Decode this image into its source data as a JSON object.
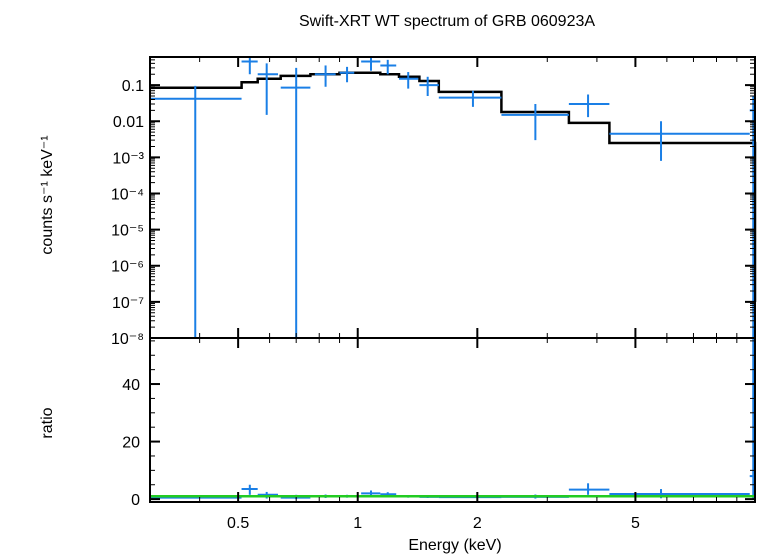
{
  "chart_data": [
    {
      "type": "scatter",
      "title": "Swift-XRT WT spectrum of GRB 060923A",
      "xlabel": "Energy (keV)",
      "ylabel": "counts s⁻¹ keV⁻¹",
      "xscale": "log",
      "yscale": "log",
      "xlim": [
        0.3,
        10
      ],
      "ylim": [
        1e-08,
        0.6
      ],
      "yticks": [
        {
          "v": 0.1,
          "label": "0.1"
        },
        {
          "v": 0.01,
          "label": "0.01"
        },
        {
          "v": 0.001,
          "label": "10⁻³"
        },
        {
          "v": 0.0001,
          "label": "10⁻⁴"
        },
        {
          "v": 1e-05,
          "label": "10⁻⁵"
        },
        {
          "v": 1e-06,
          "label": "10⁻⁶"
        },
        {
          "v": 1e-07,
          "label": "10⁻⁷"
        },
        {
          "v": 1e-08,
          "label": "10⁻⁸"
        }
      ],
      "data_color": "#1a7fe6",
      "model_color": "#000000",
      "data": [
        {
          "x": 0.39,
          "xlo": 0.3,
          "xhi": 0.51,
          "y": 0.042,
          "ylo": 1e-08,
          "yhi": 0.095
        },
        {
          "x": 0.535,
          "xlo": 0.51,
          "xhi": 0.56,
          "y": 0.45,
          "ylo": 0.2,
          "yhi": 0.65
        },
        {
          "x": 0.59,
          "xlo": 0.56,
          "xhi": 0.63,
          "y": 0.2,
          "ylo": 0.015,
          "yhi": 0.4
        },
        {
          "x": 0.7,
          "xlo": 0.64,
          "xhi": 0.76,
          "y": 0.085,
          "ylo": 1e-08,
          "yhi": 0.3
        },
        {
          "x": 0.83,
          "xlo": 0.78,
          "xhi": 0.88,
          "y": 0.2,
          "ylo": 0.09,
          "yhi": 0.35
        },
        {
          "x": 0.94,
          "xlo": 0.9,
          "xhi": 0.98,
          "y": 0.22,
          "ylo": 0.12,
          "yhi": 0.32
        },
        {
          "x": 1.08,
          "xlo": 1.02,
          "xhi": 1.14,
          "y": 0.45,
          "ylo": 0.25,
          "yhi": 0.65
        },
        {
          "x": 1.19,
          "xlo": 1.14,
          "xhi": 1.25,
          "y": 0.35,
          "ylo": 0.2,
          "yhi": 0.5
        },
        {
          "x": 1.34,
          "xlo": 1.27,
          "xhi": 1.42,
          "y": 0.15,
          "ylo": 0.08,
          "yhi": 0.23
        },
        {
          "x": 1.5,
          "xlo": 1.43,
          "xhi": 1.6,
          "y": 0.1,
          "ylo": 0.05,
          "yhi": 0.17
        },
        {
          "x": 1.95,
          "xlo": 1.6,
          "xhi": 2.3,
          "y": 0.045,
          "ylo": 0.025,
          "yhi": 0.07
        },
        {
          "x": 2.8,
          "xlo": 2.3,
          "xhi": 3.4,
          "y": 0.015,
          "ylo": 0.003,
          "yhi": 0.03
        },
        {
          "x": 3.8,
          "xlo": 3.4,
          "xhi": 4.3,
          "y": 0.03,
          "ylo": 0.013,
          "yhi": 0.055
        },
        {
          "x": 5.8,
          "xlo": 4.3,
          "xhi": 9.7,
          "y": 0.0045,
          "ylo": 0.0008,
          "yhi": 0.01
        },
        {
          "x": 9.9,
          "xlo": 9.7,
          "xhi": 10,
          "y": 0.02,
          "ylo": 1e-08,
          "yhi": 0.05
        }
      ],
      "model_steps": [
        {
          "xlo": 0.3,
          "xhi": 0.51,
          "y": 0.085
        },
        {
          "xlo": 0.51,
          "xhi": 0.56,
          "y": 0.12
        },
        {
          "xlo": 0.56,
          "xhi": 0.64,
          "y": 0.15
        },
        {
          "xlo": 0.64,
          "xhi": 0.76,
          "y": 0.18
        },
        {
          "xlo": 0.76,
          "xhi": 0.9,
          "y": 0.2
        },
        {
          "xlo": 0.9,
          "xhi": 1.14,
          "y": 0.22
        },
        {
          "xlo": 1.14,
          "xhi": 1.27,
          "y": 0.2
        },
        {
          "xlo": 1.27,
          "xhi": 1.43,
          "y": 0.17
        },
        {
          "xlo": 1.43,
          "xhi": 1.6,
          "y": 0.13
        },
        {
          "xlo": 1.6,
          "xhi": 2.3,
          "y": 0.065
        },
        {
          "xlo": 2.3,
          "xhi": 3.4,
          "y": 0.018
        },
        {
          "xlo": 3.4,
          "xhi": 4.3,
          "y": 0.009
        },
        {
          "xlo": 4.3,
          "xhi": 9.7,
          "y": 0.0025
        },
        {
          "xlo": 9.7,
          "xhi": 10,
          "y": 0.0025
        }
      ]
    },
    {
      "type": "scatter",
      "xlabel": "Energy (keV)",
      "ylabel": "ratio",
      "xscale": "log",
      "xlim": [
        0.3,
        10
      ],
      "ylim": [
        -1,
        56
      ],
      "yticks": [
        {
          "v": 0,
          "label": "0"
        },
        {
          "v": 20,
          "label": "20"
        },
        {
          "v": 40,
          "label": "40"
        }
      ],
      "xticks": [
        {
          "v": 0.5,
          "label": "0.5"
        },
        {
          "v": 1,
          "label": "1"
        },
        {
          "v": 2,
          "label": "2"
        },
        {
          "v": 5,
          "label": "5"
        }
      ],
      "reference_line": {
        "y": 1,
        "color": "#22cc22"
      },
      "data": [
        {
          "x": 0.39,
          "xlo": 0.3,
          "xhi": 0.51,
          "y": 0.5,
          "ylo": 0.3,
          "yhi": 0.7
        },
        {
          "x": 0.535,
          "xlo": 0.51,
          "xhi": 0.56,
          "y": 3.5,
          "ylo": 1.5,
          "yhi": 5
        },
        {
          "x": 0.59,
          "xlo": 0.56,
          "xhi": 0.63,
          "y": 1.5,
          "ylo": 0.2,
          "yhi": 2.5
        },
        {
          "x": 0.7,
          "xlo": 0.64,
          "xhi": 0.76,
          "y": 0.5,
          "ylo": 0,
          "yhi": 1.5
        },
        {
          "x": 0.83,
          "xlo": 0.78,
          "xhi": 0.88,
          "y": 1.0,
          "ylo": 0.4,
          "yhi": 1.6
        },
        {
          "x": 0.94,
          "xlo": 0.9,
          "xhi": 0.98,
          "y": 1.0,
          "ylo": 0.5,
          "yhi": 1.5
        },
        {
          "x": 1.08,
          "xlo": 1.02,
          "xhi": 1.14,
          "y": 2.0,
          "ylo": 1.0,
          "yhi": 3.0
        },
        {
          "x": 1.19,
          "xlo": 1.14,
          "xhi": 1.25,
          "y": 1.7,
          "ylo": 1.0,
          "yhi": 2.4
        },
        {
          "x": 1.34,
          "xlo": 1.27,
          "xhi": 1.42,
          "y": 0.9,
          "ylo": 0.5,
          "yhi": 1.3
        },
        {
          "x": 1.5,
          "xlo": 1.43,
          "xhi": 1.6,
          "y": 0.8,
          "ylo": 0.4,
          "yhi": 1.3
        },
        {
          "x": 1.95,
          "xlo": 1.6,
          "xhi": 2.3,
          "y": 0.7,
          "ylo": 0.4,
          "yhi": 1.0
        },
        {
          "x": 2.8,
          "xlo": 2.3,
          "xhi": 3.4,
          "y": 0.8,
          "ylo": 0.2,
          "yhi": 1.6
        },
        {
          "x": 3.8,
          "xlo": 3.4,
          "xhi": 4.3,
          "y": 3.3,
          "ylo": 1.5,
          "yhi": 5.5
        },
        {
          "x": 5.8,
          "xlo": 4.3,
          "xhi": 9.7,
          "y": 1.8,
          "ylo": 0.3,
          "yhi": 3.5
        },
        {
          "x": 9.9,
          "xlo": 9.7,
          "xhi": 10,
          "y": 8,
          "ylo": 0,
          "yhi": 56
        }
      ]
    }
  ]
}
